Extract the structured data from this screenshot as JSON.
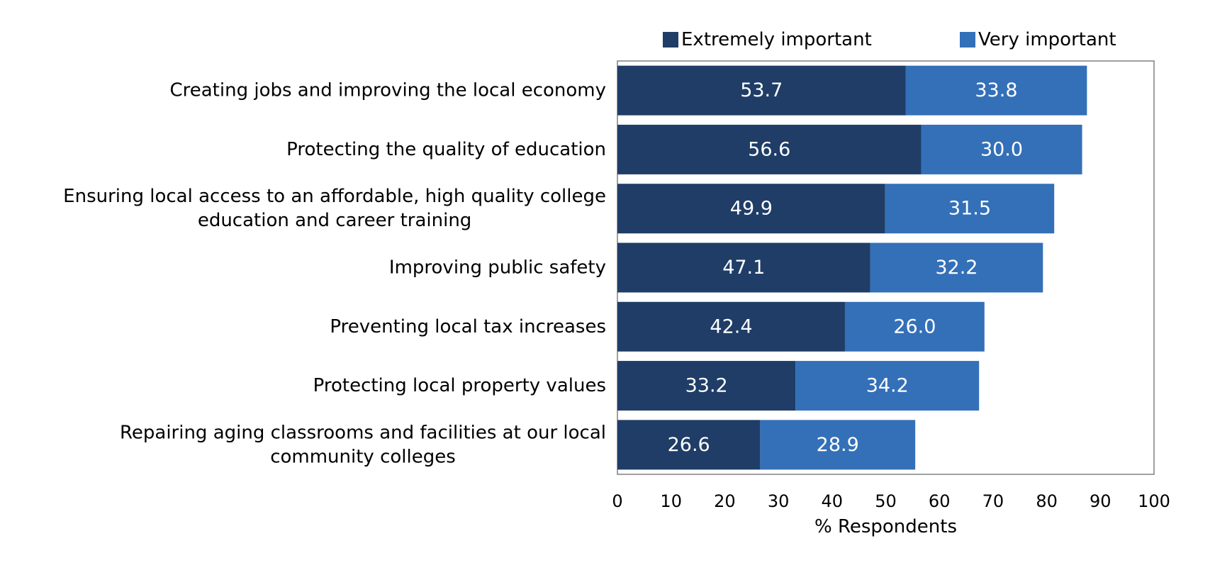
{
  "chart_data": {
    "type": "bar",
    "orientation": "horizontal",
    "stacked": true,
    "categories": [
      "Creating jobs and improving the local economy",
      "Protecting the quality of education",
      "Ensuring local access to an affordable, high quality college education and career training",
      "Improving public safety",
      "Preventing local tax increases",
      "Protecting local property values",
      "Repairing aging classrooms and facilities at our local community colleges"
    ],
    "category_lines": [
      [
        "Creating jobs and improving the local economy"
      ],
      [
        "Protecting the quality of education"
      ],
      [
        "Ensuring local access to an affordable, high quality college",
        "education and career training"
      ],
      [
        "Improving public safety"
      ],
      [
        "Preventing local tax increases"
      ],
      [
        "Protecting local property values"
      ],
      [
        "Repairing aging classrooms and facilities at our local",
        "community colleges"
      ]
    ],
    "series": [
      {
        "name": "Extremely important",
        "color": "#1f3d66",
        "values": [
          53.7,
          56.6,
          49.9,
          47.1,
          42.4,
          33.2,
          26.6
        ]
      },
      {
        "name": "Very important",
        "color": "#3470b8",
        "values": [
          33.8,
          30.0,
          31.5,
          32.2,
          26.0,
          34.2,
          28.9
        ]
      }
    ],
    "xlabel": "% Respondents",
    "xlim": [
      0,
      100
    ],
    "xticks": [
      0,
      10,
      20,
      30,
      40,
      50,
      60,
      70,
      80,
      90,
      100
    ],
    "grid": false,
    "legend_position": "top"
  }
}
